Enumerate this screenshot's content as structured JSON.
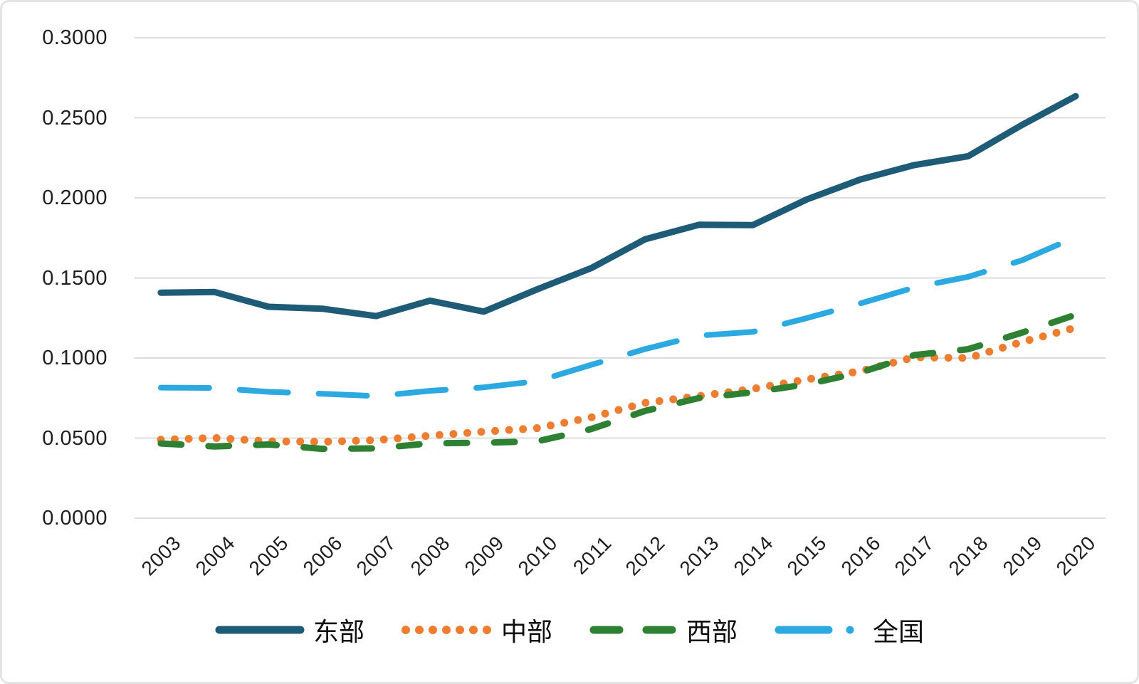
{
  "chart_data": {
    "type": "line",
    "title": "",
    "xlabel": "",
    "ylabel": "",
    "x": [
      "2003",
      "2004",
      "2005",
      "2006",
      "2007",
      "2008",
      "2009",
      "2010",
      "2011",
      "2012",
      "2013",
      "2014",
      "2015",
      "2016",
      "2017",
      "2018",
      "2019",
      "2020"
    ],
    "series": [
      {
        "id": "east",
        "name": "东部",
        "color": "#1E5B76",
        "style": "solid",
        "width": 9,
        "values": [
          0.1408,
          0.1412,
          0.132,
          0.1308,
          0.1262,
          0.1358,
          0.129,
          0.143,
          0.1562,
          0.1742,
          0.1832,
          0.183,
          0.199,
          0.2115,
          0.2205,
          0.226,
          0.2455,
          0.2635
        ]
      },
      {
        "id": "central",
        "name": "中部",
        "color": "#ED7D31",
        "style": "dot",
        "width": 11,
        "values": [
          0.049,
          0.0501,
          0.048,
          0.0477,
          0.0487,
          0.0515,
          0.054,
          0.0562,
          0.063,
          0.072,
          0.0762,
          0.0807,
          0.0866,
          0.0918,
          0.1005,
          0.1,
          0.11,
          0.119
        ]
      },
      {
        "id": "west",
        "name": "西部",
        "color": "#2E8132",
        "style": "dash",
        "width": 9,
        "values": [
          0.0466,
          0.0448,
          0.046,
          0.0433,
          0.0436,
          0.0467,
          0.0471,
          0.048,
          0.0557,
          0.067,
          0.075,
          0.0786,
          0.0835,
          0.091,
          0.1018,
          0.1055,
          0.1158,
          0.127
        ]
      },
      {
        "id": "national",
        "name": "全国",
        "color": "#2BA9E0",
        "style": "long-dash",
        "width": 8,
        "values": [
          0.0815,
          0.0813,
          0.0789,
          0.0777,
          0.0762,
          0.0795,
          0.0817,
          0.0856,
          0.0958,
          0.1056,
          0.114,
          0.1163,
          0.1249,
          0.1341,
          0.144,
          0.1507,
          0.161,
          0.1755
        ]
      }
    ],
    "ylim": [
      0,
      0.3
    ],
    "y_ticks": [
      "0.0000",
      "0.0500",
      "0.1000",
      "0.1500",
      "0.2000",
      "0.2500",
      "0.3000"
    ],
    "grid": true,
    "gridline_color": "#DDDDDD",
    "legend_position": "bottom"
  }
}
